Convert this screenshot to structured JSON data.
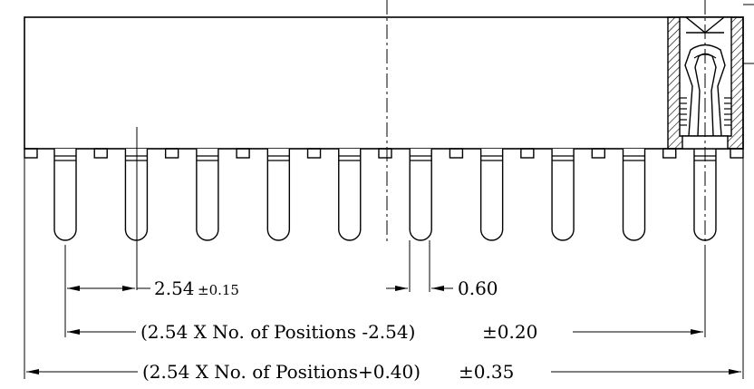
{
  "drawing": {
    "pin_count": 10,
    "dimensions": {
      "pitch": {
        "value": "2.54",
        "tolerance": "±0.15"
      },
      "pin_width": {
        "value": "0.60"
      },
      "pin_span": {
        "value": "(2.54 X No. of  Positions -2.54)",
        "tolerance": "±0.20"
      },
      "overall_length": {
        "value": "(2.54 X No. of  Positions+0.40)",
        "tolerance": "±0.35"
      }
    }
  }
}
